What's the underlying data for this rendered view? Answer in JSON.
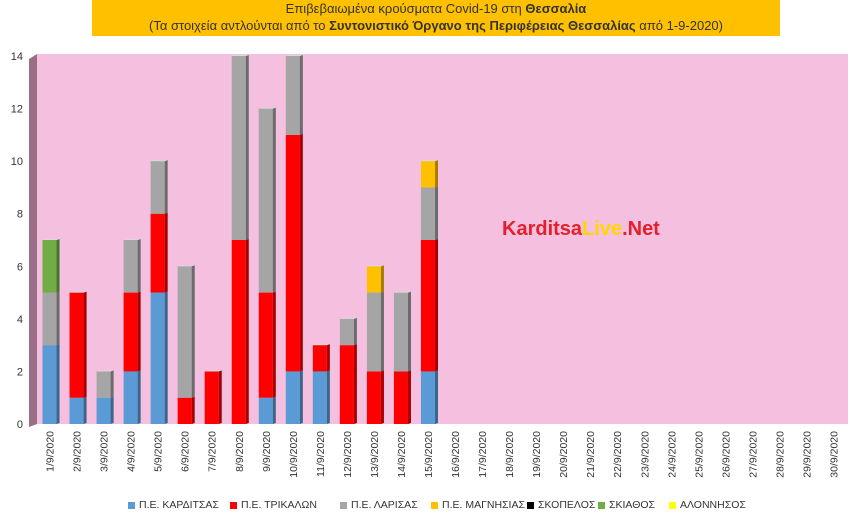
{
  "title": {
    "line1_prefix": "Επιβεβαιωμένα κρούσματα Covid-19 στη ",
    "line1_bold": "Θεσσαλία",
    "line2_prefix": "(Τα στοιχεία αντλούνται από το ",
    "line2_bold": "Συντονιστικό Όργανο της Περιφέρειας Θεσσαλίας",
    "line2_suffix": " από 1-9-2020)"
  },
  "watermark": {
    "part1": "Karditsa",
    "part2": "Live",
    "part3": ".Net",
    "color1": "#e3202b",
    "color2": "#ffd700"
  },
  "colors": {
    "plot_bg": "#f5bfdf",
    "side_wall": "#9c6d86"
  },
  "chart_data": {
    "type": "bar",
    "stacked": true,
    "categories": [
      "1/9/2020",
      "2/9/2020",
      "3/9/2020",
      "4/9/2020",
      "5/9/2020",
      "6/9/2020",
      "7/9/2020",
      "8/9/2020",
      "9/9/2020",
      "10/9/2020",
      "11/9/2020",
      "12/9/2020",
      "13/9/2020",
      "14/9/2020",
      "15/9/2020",
      "16/9/2020",
      "17/9/2020",
      "18/9/2020",
      "19/9/2020",
      "20/9/2020",
      "21/9/2020",
      "22/9/2020",
      "23/9/2020",
      "24/9/2020",
      "25/9/2020",
      "26/9/2020",
      "27/9/2020",
      "28/9/2020",
      "29/9/2020",
      "30/9/2020"
    ],
    "series": [
      {
        "name": "Π.Ε. ΚΑΡΔΙΤΣΑΣ",
        "color": "#5b9bd5",
        "values": [
          3,
          1,
          1,
          2,
          5,
          0,
          0,
          0,
          1,
          2,
          2,
          0,
          0,
          0,
          2,
          0,
          0,
          0,
          0,
          0,
          0,
          0,
          0,
          0,
          0,
          0,
          0,
          0,
          0,
          0
        ]
      },
      {
        "name": "Π.Ε. ΤΡΙΚΑΛΩΝ",
        "color": "#ff0000",
        "values": [
          0,
          4,
          0,
          3,
          3,
          1,
          2,
          7,
          4,
          9,
          1,
          3,
          2,
          2,
          5,
          0,
          0,
          0,
          0,
          0,
          0,
          0,
          0,
          0,
          0,
          0,
          0,
          0,
          0,
          0
        ]
      },
      {
        "name": "Π.Ε. ΛΑΡΙΣΑΣ",
        "color": "#a5a5a5",
        "values": [
          2,
          0,
          1,
          2,
          2,
          5,
          0,
          7,
          7,
          3,
          0,
          1,
          3,
          3,
          2,
          0,
          0,
          0,
          0,
          0,
          0,
          0,
          0,
          0,
          0,
          0,
          0,
          0,
          0,
          0
        ]
      },
      {
        "name": "Π.Ε. ΜΑΓΝΗΣΙΑΣ",
        "color": "#ffc000",
        "values": [
          0,
          0,
          0,
          0,
          0,
          0,
          0,
          0,
          0,
          0,
          0,
          0,
          1,
          0,
          1,
          0,
          0,
          0,
          0,
          0,
          0,
          0,
          0,
          0,
          0,
          0,
          0,
          0,
          0,
          0
        ]
      },
      {
        "name": "ΣΚΟΠΕΛΟΣ",
        "color": "#000000",
        "values": [
          0,
          0,
          0,
          0,
          0,
          0,
          0,
          0,
          0,
          0,
          0,
          0,
          0,
          0,
          0,
          0,
          0,
          0,
          0,
          0,
          0,
          0,
          0,
          0,
          0,
          0,
          0,
          0,
          0,
          0
        ]
      },
      {
        "name": "ΣΚΙΑΘΟΣ",
        "color": "#70ad47",
        "values": [
          2,
          0,
          0,
          0,
          0,
          0,
          0,
          0,
          0,
          0,
          0,
          0,
          0,
          0,
          0,
          0,
          0,
          0,
          0,
          0,
          0,
          0,
          0,
          0,
          0,
          0,
          0,
          0,
          0,
          0
        ]
      },
      {
        "name": "ΑΛΟΝΝΗΣΟΣ",
        "color": "#ffff00",
        "values": [
          0,
          0,
          0,
          0,
          0,
          0,
          0,
          0,
          0,
          0,
          0,
          0,
          0,
          0,
          0,
          0,
          0,
          0,
          0,
          0,
          0,
          0,
          0,
          0,
          0,
          0,
          0,
          0,
          0,
          0
        ]
      }
    ],
    "ylim": [
      0,
      14
    ],
    "yticks": [
      0,
      2,
      4,
      6,
      8,
      10,
      12,
      14
    ],
    "grid": false,
    "legend_position": "bottom"
  }
}
